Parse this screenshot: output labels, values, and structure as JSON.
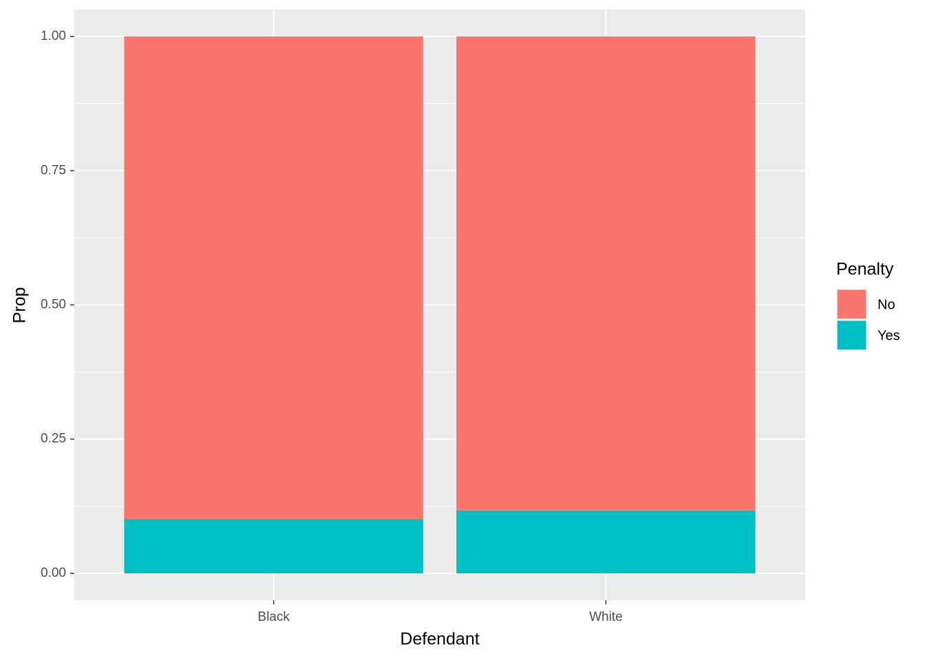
{
  "chart_data": {
    "type": "stacked_bar",
    "x_label": "Defendant",
    "y_label": "Prop",
    "categories": [
      "Black",
      "White"
    ],
    "series": [
      {
        "name": "No",
        "color": "#F8766D",
        "values": [
          0.899,
          0.883
        ]
      },
      {
        "name": "Yes",
        "color": "#00BFC4",
        "values": [
          0.101,
          0.117
        ]
      }
    ],
    "legend_title": "Penalty",
    "ylim": [
      -0.05,
      1.05
    ],
    "yticks": [
      {
        "value": 0,
        "label": "0.00"
      },
      {
        "value": 0.25,
        "label": "0.25"
      },
      {
        "value": 0.5,
        "label": "0.50"
      },
      {
        "value": 0.75,
        "label": "0.75"
      },
      {
        "value": 1,
        "label": "1.00"
      }
    ],
    "grid": true,
    "legend": "right"
  }
}
